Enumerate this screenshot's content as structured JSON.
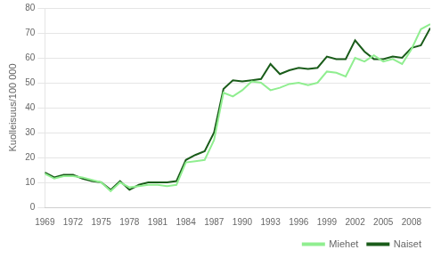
{
  "chart_data": {
    "type": "line",
    "ylabel": "Kuolleisuus/100 000",
    "x": [
      1969,
      1970,
      1971,
      1972,
      1973,
      1974,
      1975,
      1976,
      1977,
      1978,
      1979,
      1980,
      1981,
      1982,
      1983,
      1984,
      1985,
      1986,
      1987,
      1988,
      1989,
      1990,
      1991,
      1992,
      1993,
      1994,
      1995,
      1996,
      1997,
      1998,
      1999,
      2000,
      2001,
      2002,
      2003,
      2004,
      2005,
      2006,
      2007,
      2008,
      2009,
      2010
    ],
    "series": [
      {
        "name": "Miehet",
        "color": "#90EE90",
        "values": [
          13.5,
          11.5,
          12.5,
          12.5,
          12.0,
          11.0,
          10.0,
          6.5,
          10.0,
          8.0,
          8.5,
          9.0,
          9.0,
          8.5,
          9.0,
          18.0,
          18.5,
          19.0,
          27.0,
          46.0,
          44.5,
          47.0,
          50.5,
          50.0,
          47.0,
          48.0,
          49.5,
          50.0,
          49.0,
          50.0,
          54.5,
          54.0,
          52.5,
          60.0,
          58.5,
          61.0,
          58.5,
          59.5,
          57.5,
          63.5,
          71.5,
          73.5
        ]
      },
      {
        "name": "Naiset",
        "color": "#1a5c1a",
        "values": [
          14.0,
          12.0,
          13.0,
          13.0,
          11.5,
          10.5,
          10.0,
          7.0,
          10.5,
          7.0,
          9.0,
          10.0,
          10.0,
          10.0,
          10.5,
          19.0,
          21.0,
          22.5,
          30.0,
          47.5,
          51.0,
          50.5,
          51.0,
          51.5,
          57.5,
          53.5,
          55.0,
          56.0,
          55.5,
          56.0,
          60.5,
          59.5,
          59.5,
          67.0,
          62.5,
          59.5,
          59.5,
          60.5,
          60.0,
          64.0,
          65.0,
          72.0
        ]
      }
    ],
    "xlim": [
      1969,
      2010
    ],
    "xticks": [
      1969,
      1972,
      1975,
      1978,
      1981,
      1984,
      1987,
      1990,
      1993,
      1996,
      1999,
      2002,
      2005,
      2008
    ],
    "ylim": [
      0,
      80
    ],
    "yticks": [
      0,
      10,
      20,
      30,
      40,
      50,
      60,
      70,
      80
    ],
    "grid": "y",
    "legend": "lower right"
  }
}
